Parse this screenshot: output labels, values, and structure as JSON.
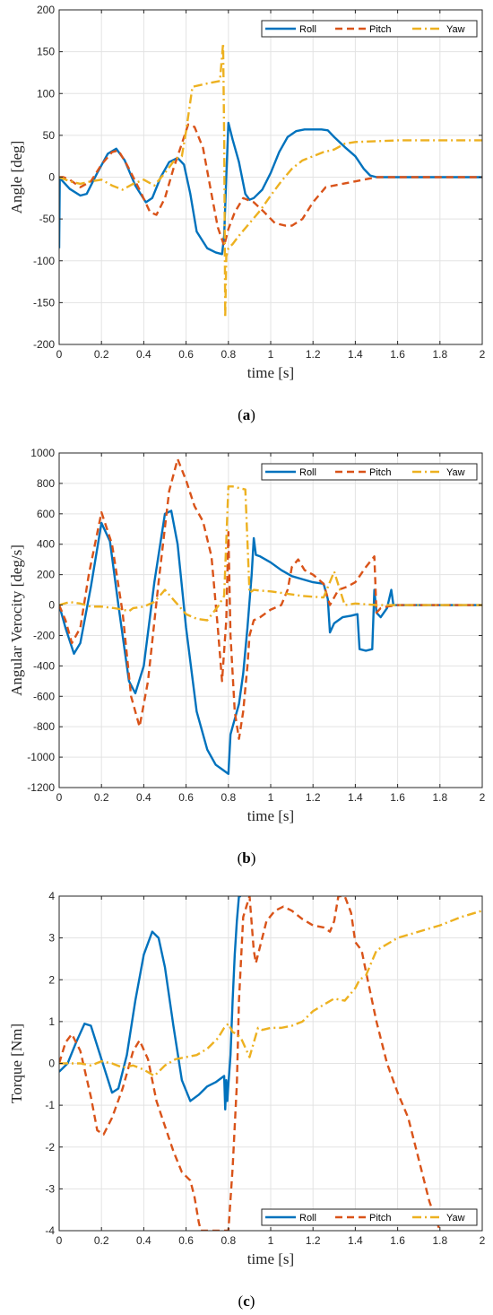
{
  "colors": {
    "roll": "#0072BD",
    "pitch": "#D95319",
    "yaw": "#EDB120"
  },
  "chart_data": [
    {
      "type": "line",
      "caption": "(a)",
      "xlabel": "time [s]",
      "ylabel": "Angle [deg]",
      "xlim": [
        0,
        2
      ],
      "ylim": [
        -200,
        200
      ],
      "xticks": [
        "0",
        "0.2",
        "0.4",
        "0.6",
        "0.8",
        "1",
        "1.2",
        "1.4",
        "1.6",
        "1.8",
        "2"
      ],
      "yticks": [
        "-200",
        "-150",
        "-100",
        "-50",
        "0",
        "50",
        "100",
        "150",
        "200"
      ],
      "grid": true,
      "legend_position": "top-right",
      "series": [
        {
          "name": "Roll",
          "style": "solid",
          "color_key": "roll",
          "x": [
            0,
            0.003,
            0.01,
            0.05,
            0.1,
            0.13,
            0.18,
            0.23,
            0.27,
            0.31,
            0.36,
            0.41,
            0.44,
            0.48,
            0.52,
            0.56,
            0.59,
            0.62,
            0.65,
            0.7,
            0.74,
            0.77,
            0.78,
            0.79,
            0.8,
            0.82,
            0.85,
            0.88,
            0.9,
            0.92,
            0.96,
            1.0,
            1.04,
            1.08,
            1.12,
            1.16,
            1.2,
            1.24,
            1.27,
            1.3,
            1.35,
            1.4,
            1.44,
            1.47,
            1.5,
            1.55,
            1.6,
            2.0
          ],
          "y": [
            -85,
            0,
            -3,
            -14,
            -22,
            -20,
            5,
            28,
            34,
            20,
            -10,
            -30,
            -25,
            0,
            18,
            23,
            15,
            -20,
            -65,
            -85,
            -90,
            -92,
            -70,
            0,
            65,
            45,
            18,
            -20,
            -27,
            -25,
            -15,
            5,
            30,
            48,
            55,
            57,
            57,
            57,
            56,
            48,
            36,
            25,
            10,
            2,
            0,
            0,
            0,
            0
          ]
        },
        {
          "name": "Pitch",
          "style": "dashed",
          "color_key": "pitch",
          "x": [
            0,
            0.02,
            0.05,
            0.1,
            0.15,
            0.2,
            0.25,
            0.28,
            0.32,
            0.38,
            0.43,
            0.46,
            0.5,
            0.54,
            0.58,
            0.61,
            0.64,
            0.68,
            0.72,
            0.75,
            0.78,
            0.8,
            0.83,
            0.87,
            0.92,
            0.97,
            1.02,
            1.07,
            1.1,
            1.15,
            1.2,
            1.26,
            1.3,
            1.4,
            1.5,
            2.0
          ],
          "y": [
            0,
            0,
            -3,
            -12,
            -5,
            15,
            30,
            32,
            15,
            -15,
            -42,
            -45,
            -25,
            10,
            40,
            63,
            60,
            35,
            -20,
            -60,
            -82,
            -62,
            -42,
            -25,
            -30,
            -42,
            -55,
            -58,
            -58,
            -50,
            -30,
            -12,
            -10,
            -5,
            0,
            0
          ]
        },
        {
          "name": "Yaw",
          "style": "dashdot",
          "color_key": "yaw",
          "x": [
            0,
            0.05,
            0.1,
            0.15,
            0.2,
            0.25,
            0.3,
            0.35,
            0.4,
            0.45,
            0.5,
            0.55,
            0.58,
            0.6,
            0.63,
            0.7,
            0.76,
            0.775,
            0.78,
            0.785,
            0.79,
            0.8,
            0.82,
            0.85,
            0.9,
            0.95,
            1.0,
            1.05,
            1.1,
            1.15,
            1.2,
            1.25,
            1.3,
            1.35,
            1.4,
            1.5,
            1.6,
            2.0
          ],
          "y": [
            0,
            -5,
            -8,
            -5,
            -3,
            -10,
            -15,
            -8,
            -3,
            -10,
            5,
            22,
            25,
            55,
            108,
            112,
            115,
            160,
            50,
            -168,
            -95,
            -85,
            -80,
            -70,
            -55,
            -40,
            -22,
            -5,
            10,
            20,
            25,
            30,
            33,
            40,
            42,
            43,
            44,
            44
          ]
        }
      ]
    },
    {
      "type": "line",
      "caption": "(b)",
      "xlabel": "time [s]",
      "ylabel": "Angular Verocity [deg/s]",
      "xlim": [
        0,
        2
      ],
      "ylim": [
        -1200,
        1000
      ],
      "xticks": [
        "0",
        "0.2",
        "0.4",
        "0.6",
        "0.8",
        "1",
        "1.2",
        "1.4",
        "1.6",
        "1.8",
        "2"
      ],
      "yticks": [
        "-1200",
        "-1000",
        "-800",
        "-600",
        "-400",
        "-200",
        "0",
        "200",
        "400",
        "600",
        "800",
        "1000"
      ],
      "grid": true,
      "legend_position": "top-right",
      "series": [
        {
          "name": "Roll",
          "style": "solid",
          "color_key": "roll",
          "x": [
            0,
            0.03,
            0.07,
            0.1,
            0.15,
            0.2,
            0.24,
            0.28,
            0.33,
            0.36,
            0.4,
            0.45,
            0.5,
            0.53,
            0.56,
            0.6,
            0.65,
            0.7,
            0.74,
            0.77,
            0.8,
            0.81,
            0.83,
            0.85,
            0.87,
            0.89,
            0.91,
            0.92,
            0.93,
            0.95,
            1.0,
            1.05,
            1.1,
            1.15,
            1.2,
            1.25,
            1.27,
            1.28,
            1.3,
            1.34,
            1.38,
            1.41,
            1.42,
            1.45,
            1.48,
            1.49,
            1.5,
            1.52,
            1.55,
            1.57,
            1.58,
            1.6,
            1.65,
            2.0
          ],
          "y": [
            0,
            -150,
            -320,
            -250,
            120,
            540,
            420,
            0,
            -500,
            -580,
            -400,
            150,
            600,
            620,
            400,
            -150,
            -700,
            -950,
            -1050,
            -1080,
            -1110,
            -850,
            -750,
            -650,
            -450,
            -150,
            200,
            440,
            330,
            320,
            280,
            230,
            190,
            170,
            150,
            140,
            40,
            -180,
            -120,
            -80,
            -70,
            -60,
            -290,
            -300,
            -290,
            100,
            -50,
            -80,
            -20,
            100,
            0,
            0,
            0,
            0
          ]
        },
        {
          "name": "Pitch",
          "style": "dashed",
          "color_key": "pitch",
          "x": [
            0,
            0.03,
            0.06,
            0.1,
            0.14,
            0.2,
            0.25,
            0.3,
            0.34,
            0.38,
            0.42,
            0.47,
            0.52,
            0.56,
            0.6,
            0.64,
            0.68,
            0.72,
            0.75,
            0.77,
            0.79,
            0.8,
            0.81,
            0.83,
            0.85,
            0.87,
            0.89,
            0.9,
            0.92,
            0.95,
            1.0,
            1.05,
            1.08,
            1.1,
            1.13,
            1.16,
            1.2,
            1.25,
            1.28,
            1.3,
            1.32,
            1.36,
            1.4,
            1.45,
            1.49,
            1.5,
            1.52,
            1.55,
            1.6,
            1.65,
            2.0
          ],
          "y": [
            0,
            -100,
            -250,
            -150,
            200,
            610,
            400,
            -50,
            -600,
            -800,
            -500,
            150,
            750,
            960,
            820,
            650,
            550,
            320,
            -150,
            -500,
            -100,
            480,
            -200,
            -700,
            -880,
            -700,
            -400,
            -200,
            -100,
            -80,
            -30,
            0,
            100,
            250,
            300,
            230,
            200,
            140,
            0,
            50,
            100,
            120,
            150,
            250,
            320,
            -50,
            -20,
            -10,
            0,
            0,
            0
          ]
        },
        {
          "name": "Yaw",
          "style": "dashdot",
          "color_key": "yaw",
          "x": [
            0,
            0.05,
            0.1,
            0.15,
            0.2,
            0.26,
            0.3,
            0.33,
            0.35,
            0.4,
            0.45,
            0.5,
            0.55,
            0.6,
            0.65,
            0.7,
            0.75,
            0.78,
            0.8,
            0.82,
            0.85,
            0.88,
            0.9,
            0.92,
            0.95,
            1.0,
            1.05,
            1.1,
            1.15,
            1.2,
            1.25,
            1.3,
            1.35,
            1.4,
            1.5,
            1.6,
            2.0
          ],
          "y": [
            0,
            20,
            10,
            -10,
            -10,
            -20,
            -30,
            -40,
            -20,
            -10,
            20,
            100,
            20,
            -60,
            -90,
            -100,
            -10,
            60,
            780,
            780,
            770,
            760,
            80,
            100,
            95,
            90,
            80,
            70,
            60,
            55,
            50,
            220,
            0,
            10,
            0,
            0,
            0
          ]
        }
      ]
    },
    {
      "type": "line",
      "caption": "(c)",
      "xlabel": "time [s]",
      "ylabel": "Torque [Nm]",
      "xlim": [
        0,
        2
      ],
      "ylim": [
        -4,
        4
      ],
      "xticks": [
        "0",
        "0.2",
        "0.4",
        "0.6",
        "0.8",
        "1",
        "1.2",
        "1.4",
        "1.6",
        "1.8",
        "2"
      ],
      "yticks": [
        "-4",
        "-3",
        "-2",
        "-1",
        "0",
        "1",
        "2",
        "3",
        "4"
      ],
      "grid": true,
      "legend_position": "bottom-right",
      "series": [
        {
          "name": "Roll",
          "style": "solid",
          "color_key": "roll",
          "x": [
            0,
            0.04,
            0.08,
            0.12,
            0.15,
            0.2,
            0.25,
            0.28,
            0.32,
            0.36,
            0.4,
            0.44,
            0.47,
            0.5,
            0.54,
            0.58,
            0.62,
            0.66,
            0.7,
            0.74,
            0.78,
            0.785,
            0.79,
            0.795,
            0.8,
            0.81,
            0.82,
            0.83,
            0.84,
            0.85,
            0.86
          ],
          "y": [
            -0.2,
            0,
            0.5,
            0.95,
            0.9,
            0.1,
            -0.7,
            -0.6,
            0.2,
            1.5,
            2.6,
            3.15,
            3.0,
            2.3,
            0.9,
            -0.4,
            -0.9,
            -0.75,
            -0.55,
            -0.45,
            -0.3,
            -1.1,
            -0.4,
            -0.9,
            -0.5,
            0.2,
            1.5,
            2.6,
            3.4,
            4.0,
            4.0
          ]
        },
        {
          "name": "Pitch",
          "style": "dashed",
          "color_key": "pitch",
          "x": [
            0,
            0.03,
            0.06,
            0.1,
            0.15,
            0.18,
            0.21,
            0.25,
            0.3,
            0.35,
            0.38,
            0.42,
            0.46,
            0.5,
            0.54,
            0.58,
            0.62,
            0.64,
            0.66,
            0.67,
            0.8,
            0.82,
            0.84,
            0.85,
            0.87,
            0.9,
            0.92,
            0.93,
            0.95,
            0.98,
            1.02,
            1.06,
            1.1,
            1.15,
            1.2,
            1.25,
            1.28,
            1.3,
            1.32,
            1.35,
            1.38,
            1.4,
            1.43,
            1.45,
            1.5,
            1.55,
            1.6,
            1.65,
            1.7,
            1.75,
            1.8
          ],
          "y": [
            0,
            0.5,
            0.7,
            0.3,
            -0.8,
            -1.6,
            -1.7,
            -1.3,
            -0.6,
            0.3,
            0.55,
            0.1,
            -0.9,
            -1.5,
            -2.1,
            -2.6,
            -2.8,
            -3.2,
            -3.8,
            -4.0,
            -4.0,
            -2.5,
            -0.5,
            1.5,
            3.5,
            4.0,
            2.7,
            2.4,
            2.8,
            3.4,
            3.65,
            3.75,
            3.65,
            3.45,
            3.3,
            3.25,
            3.15,
            3.4,
            4.0,
            4.0,
            3.6,
            2.9,
            2.7,
            2.2,
            1.0,
            0.0,
            -0.7,
            -1.3,
            -2.3,
            -3.3,
            -4.0
          ]
        },
        {
          "name": "Yaw",
          "style": "dashdot",
          "color_key": "yaw",
          "x": [
            0,
            0.05,
            0.1,
            0.15,
            0.2,
            0.25,
            0.3,
            0.35,
            0.4,
            0.45,
            0.5,
            0.55,
            0.6,
            0.65,
            0.7,
            0.75,
            0.78,
            0.8,
            0.82,
            0.84,
            0.86,
            0.9,
            0.92,
            0.94,
            0.96,
            1.0,
            1.05,
            1.1,
            1.15,
            1.2,
            1.25,
            1.3,
            1.35,
            1.4,
            1.42,
            1.45,
            1.5,
            1.6,
            1.7,
            1.8,
            1.9,
            2.0
          ],
          "y": [
            0,
            0,
            0,
            -0.05,
            0.05,
            0,
            -0.1,
            -0.05,
            -0.15,
            -0.3,
            -0.05,
            0.1,
            0.15,
            0.2,
            0.35,
            0.6,
            0.85,
            0.95,
            0.75,
            0.7,
            0.6,
            0.15,
            0.5,
            0.85,
            0.8,
            0.85,
            0.85,
            0.9,
            1.0,
            1.25,
            1.4,
            1.55,
            1.5,
            1.8,
            2.0,
            2.1,
            2.7,
            3.0,
            3.15,
            3.3,
            3.5,
            3.65
          ]
        }
      ]
    }
  ]
}
